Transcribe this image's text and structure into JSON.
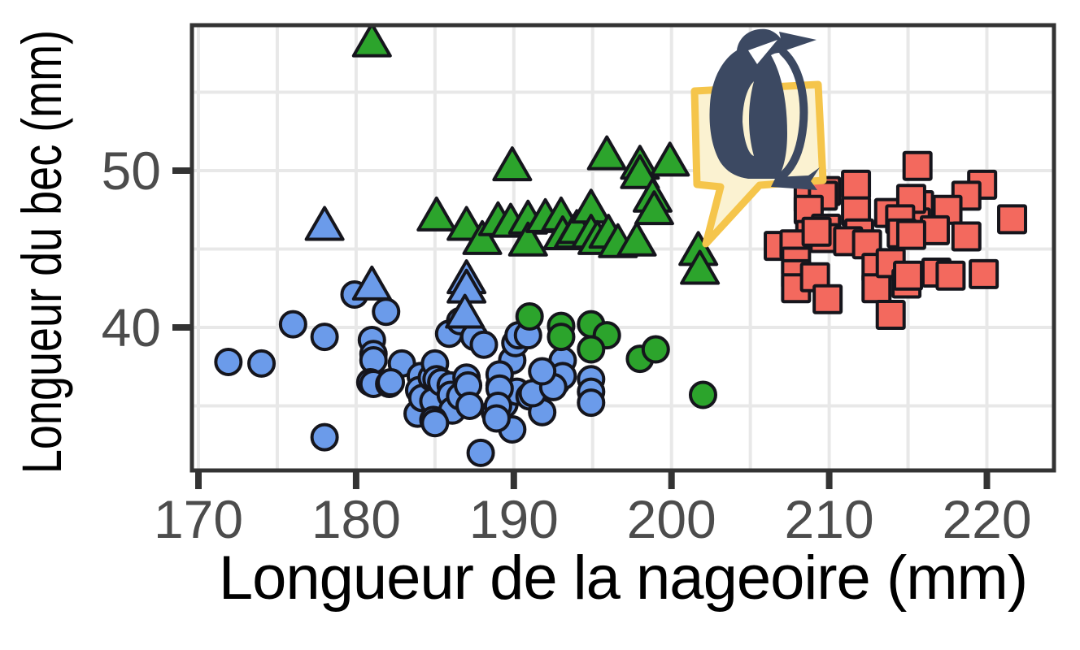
{
  "chart_data": {
    "type": "scatter",
    "title": "",
    "xlabel": "Longueur de la nageoire (mm)",
    "ylabel": "Longueur du bec (mm)",
    "xlim": [
      169.5,
      224.2
    ],
    "ylim": [
      30.7,
      59.3
    ],
    "x_ticks": [
      170,
      180,
      190,
      200,
      210,
      220
    ],
    "y_ticks": [
      40,
      50
    ],
    "x_grid": [
      170,
      175,
      180,
      185,
      190,
      195,
      200,
      205,
      210,
      215,
      220
    ],
    "y_grid": [
      35,
      40,
      45,
      50,
      55
    ],
    "grid": true,
    "legend_position": "none",
    "marker_stroke": "#15151c",
    "series": [
      {
        "name": "blue-circles",
        "marker": "circle",
        "color": "#6B9BEA",
        "points": [
          [
            171.9,
            37.8
          ],
          [
            174.0,
            37.7
          ],
          [
            176.0,
            40.2
          ],
          [
            178.0,
            39.4
          ],
          [
            178.0,
            33.0
          ],
          [
            179.9,
            42.1
          ],
          [
            181.9,
            41.0
          ],
          [
            181.0,
            39.2
          ],
          [
            181.1,
            38.3
          ],
          [
            181.1,
            37.9
          ],
          [
            180.9,
            36.5
          ],
          [
            181.1,
            36.4
          ],
          [
            182.1,
            36.4
          ],
          [
            182.9,
            37.7
          ],
          [
            182.2,
            36.5
          ],
          [
            184.1,
            36.9
          ],
          [
            184.0,
            36.0
          ],
          [
            183.9,
            34.5
          ],
          [
            184.2,
            35.5
          ],
          [
            184.8,
            36.8
          ],
          [
            185.0,
            37.7
          ],
          [
            185.1,
            36.7
          ],
          [
            184.9,
            35.3
          ],
          [
            185.4,
            36.5
          ],
          [
            186.0,
            36.3
          ],
          [
            186.0,
            35.7
          ],
          [
            186.1,
            34.7
          ],
          [
            186.6,
            35.6
          ],
          [
            184.9,
            34.1
          ],
          [
            185.0,
            33.9
          ],
          [
            185.9,
            39.6
          ],
          [
            186.6,
            40.4
          ],
          [
            187.5,
            39.4
          ],
          [
            188.1,
            38.9
          ],
          [
            187.0,
            36.8
          ],
          [
            187.1,
            36.3
          ],
          [
            187.2,
            35.0
          ],
          [
            187.9,
            32.0
          ],
          [
            188.8,
            34.6
          ],
          [
            189.1,
            36.3
          ],
          [
            189.4,
            35.1
          ],
          [
            189.9,
            37.9
          ],
          [
            190.1,
            39.0
          ],
          [
            190.3,
            39.5
          ],
          [
            190.9,
            39.5
          ],
          [
            190.2,
            35.9
          ],
          [
            191.0,
            35.6
          ],
          [
            191.8,
            34.6
          ],
          [
            189.9,
            33.5
          ],
          [
            189.1,
            37.0
          ],
          [
            189.1,
            36.1
          ],
          [
            189.0,
            35.0
          ],
          [
            188.9,
            34.2
          ],
          [
            191.2,
            35.8
          ],
          [
            192.7,
            36.5
          ],
          [
            193.1,
            37.9
          ],
          [
            193.1,
            36.9
          ],
          [
            192.5,
            36.2
          ],
          [
            194.9,
            36.7
          ],
          [
            194.9,
            35.9
          ],
          [
            194.9,
            35.2
          ],
          [
            191.8,
            37.2
          ]
        ]
      },
      {
        "name": "green-circles",
        "marker": "circle",
        "color": "#2CA42C",
        "points": [
          [
            191.0,
            40.7
          ],
          [
            193.0,
            40.1
          ],
          [
            193.0,
            39.4
          ],
          [
            194.9,
            40.2
          ],
          [
            195.9,
            39.5
          ],
          [
            194.9,
            38.6
          ],
          [
            198.0,
            38.0
          ],
          [
            199.0,
            38.6
          ],
          [
            202.0,
            35.7
          ]
        ]
      },
      {
        "name": "blue-triangles",
        "marker": "triangle",
        "color": "#6B9BEA",
        "points": [
          [
            178.0,
            46.4
          ],
          [
            181.0,
            42.6
          ],
          [
            187.0,
            43.0
          ],
          [
            187.0,
            42.4
          ],
          [
            186.9,
            40.8
          ]
        ]
      },
      {
        "name": "green-triangles",
        "marker": "triangle",
        "color": "#2CA42C",
        "points": [
          [
            181.0,
            58.1
          ],
          [
            189.9,
            50.2
          ],
          [
            195.9,
            50.9
          ],
          [
            198.0,
            50.3
          ],
          [
            198.0,
            49.7
          ],
          [
            199.9,
            50.5
          ],
          [
            198.8,
            48.2
          ],
          [
            198.9,
            47.4
          ],
          [
            185.1,
            47.0
          ],
          [
            187.0,
            46.4
          ],
          [
            188.0,
            45.5
          ],
          [
            189.0,
            46.7
          ],
          [
            189.8,
            46.6
          ],
          [
            190.9,
            46.8
          ],
          [
            190.9,
            45.4
          ],
          [
            192.0,
            46.9
          ],
          [
            193.0,
            47.0
          ],
          [
            193.1,
            45.8
          ],
          [
            193.8,
            45.9
          ],
          [
            194.0,
            46.2
          ],
          [
            194.9,
            47.5
          ],
          [
            194.9,
            45.9
          ],
          [
            195.3,
            45.5
          ],
          [
            196.0,
            45.9
          ],
          [
            196.6,
            45.3
          ],
          [
            197.8,
            45.4
          ],
          [
            201.7,
            44.8
          ],
          [
            201.8,
            43.6
          ]
        ]
      },
      {
        "name": "red-squares",
        "marker": "square",
        "color": "#F3695E",
        "points": [
          [
            211.7,
            49.1
          ],
          [
            215.6,
            50.3
          ],
          [
            209.8,
            48.7
          ],
          [
            208.7,
            48.2
          ],
          [
            209.6,
            48.4
          ],
          [
            219.7,
            49.1
          ],
          [
            218.7,
            48.4
          ],
          [
            217.5,
            47.5
          ],
          [
            215.7,
            47.8
          ],
          [
            215.5,
            46.7
          ],
          [
            216.7,
            46.2
          ],
          [
            218.7,
            45.8
          ],
          [
            221.6,
            46.9
          ],
          [
            208.7,
            47.5
          ],
          [
            211.7,
            47.4
          ],
          [
            213.8,
            47.3
          ],
          [
            215.2,
            48.2
          ],
          [
            209.8,
            46.3
          ],
          [
            211.9,
            46.0
          ],
          [
            214.5,
            46.9
          ],
          [
            214.6,
            46.0
          ],
          [
            208.8,
            45.9
          ],
          [
            206.8,
            45.2
          ],
          [
            207.8,
            45.3
          ],
          [
            209.7,
            45.7
          ],
          [
            211.2,
            45.5
          ],
          [
            212.4,
            45.3
          ],
          [
            215.2,
            45.9
          ],
          [
            209.2,
            46.1
          ],
          [
            207.9,
            44.2
          ],
          [
            207.9,
            43.4
          ],
          [
            207.9,
            42.5
          ],
          [
            209.1,
            43.2
          ],
          [
            209.9,
            41.8
          ],
          [
            213.0,
            43.8
          ],
          [
            213.0,
            42.5
          ],
          [
            213.9,
            44.1
          ],
          [
            214.9,
            42.8
          ],
          [
            213.9,
            40.8
          ],
          [
            216.8,
            43.5
          ],
          [
            217.7,
            43.3
          ],
          [
            219.8,
            43.4
          ],
          [
            215.0,
            43.3
          ]
        ]
      }
    ]
  },
  "axes": {
    "tick_label_color": "#4c4c4c",
    "axis_color": "#333333",
    "grid_color": "#e8e8e8",
    "panel_background": "#ffffff"
  },
  "sticker": {
    "label": "penguin-sticker",
    "bubble_fill": "#FBF2D1",
    "bubble_stroke": "#F5C54B",
    "penguin_color": "#3C4962"
  }
}
